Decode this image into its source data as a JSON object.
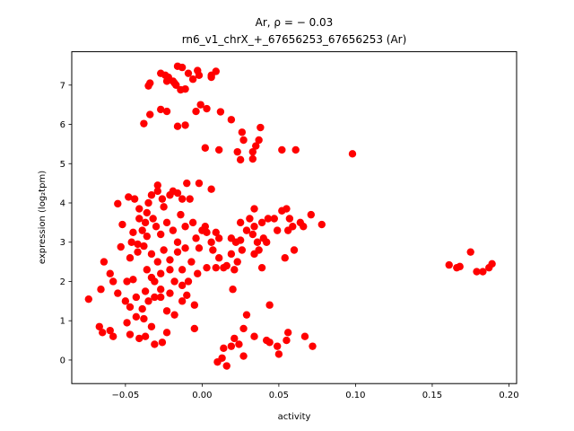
{
  "chart_data": {
    "type": "scatter",
    "title_line1": "Ar, ρ = − 0.03",
    "title_line2": "rn6_v1_chrX_+_67656253_67656253 (Ar)",
    "xlabel": "activity",
    "ylabel": "expression (log₂tpm)",
    "xlim": [
      -0.085,
      0.205
    ],
    "ylim": [
      -0.6,
      7.85
    ],
    "xticks": [
      -0.05,
      0.0,
      0.05,
      0.1,
      0.15,
      0.2
    ],
    "xtick_labels": [
      "−0.05",
      "0.00",
      "0.05",
      "0.10",
      "0.15",
      "0.20"
    ],
    "yticks": [
      0,
      1,
      2,
      3,
      4,
      5,
      6,
      7
    ],
    "ytick_labels": [
      "0",
      "1",
      "2",
      "3",
      "4",
      "5",
      "6",
      "7"
    ],
    "grid": false,
    "marker_color": "#ff0000",
    "points": [
      [
        -0.034,
        7.05
      ],
      [
        -0.035,
        6.98
      ],
      [
        -0.027,
        7.3
      ],
      [
        -0.024,
        7.25
      ],
      [
        -0.022,
        7.2
      ],
      [
        -0.019,
        7.1
      ],
      [
        -0.016,
        7.48
      ],
      [
        -0.013,
        7.45
      ],
      [
        -0.009,
        7.3
      ],
      [
        -0.006,
        7.15
      ],
      [
        -0.003,
        7.37
      ],
      [
        -0.017,
        7.0
      ],
      [
        -0.014,
        6.88
      ],
      [
        -0.011,
        6.9
      ],
      [
        -0.002,
        7.25
      ],
      [
        0.006,
        7.25
      ],
      [
        0.009,
        7.35
      ],
      [
        0.006,
        7.2
      ],
      [
        -0.034,
        6.25
      ],
      [
        -0.038,
        6.02
      ],
      [
        -0.027,
        6.38
      ],
      [
        -0.023,
        6.33
      ],
      [
        -0.016,
        5.95
      ],
      [
        -0.011,
        5.98
      ],
      [
        -0.004,
        6.33
      ],
      [
        -0.001,
        6.5
      ],
      [
        0.003,
        6.4
      ],
      [
        -0.018,
        7.05
      ],
      [
        -0.023,
        7.1
      ],
      [
        0.012,
        6.32
      ],
      [
        0.019,
        6.12
      ],
      [
        0.026,
        5.8
      ],
      [
        0.027,
        5.6
      ],
      [
        0.033,
        5.3
      ],
      [
        0.035,
        5.45
      ],
      [
        0.037,
        5.6
      ],
      [
        0.038,
        5.92
      ],
      [
        0.023,
        5.3
      ],
      [
        0.033,
        5.12
      ],
      [
        0.025,
        5.1
      ],
      [
        0.002,
        5.4
      ],
      [
        0.011,
        5.35
      ],
      [
        0.052,
        5.35
      ],
      [
        0.061,
        5.35
      ],
      [
        0.098,
        5.25
      ],
      [
        -0.055,
        3.98
      ],
      [
        -0.048,
        4.15
      ],
      [
        -0.044,
        4.1
      ],
      [
        -0.041,
        3.85
      ],
      [
        -0.035,
        4.0
      ],
      [
        -0.033,
        4.2
      ],
      [
        -0.029,
        4.3
      ],
      [
        -0.026,
        4.1
      ],
      [
        -0.021,
        4.2
      ],
      [
        -0.019,
        4.3
      ],
      [
        -0.016,
        4.25
      ],
      [
        -0.013,
        4.1
      ],
      [
        -0.01,
        4.5
      ],
      [
        -0.008,
        4.1
      ],
      [
        -0.002,
        4.5
      ],
      [
        0.006,
        4.35
      ],
      [
        -0.029,
        4.45
      ],
      [
        -0.037,
        3.5
      ],
      [
        -0.032,
        3.6
      ],
      [
        -0.027,
        3.2
      ],
      [
        -0.023,
        3.5
      ],
      [
        -0.019,
        3.3
      ],
      [
        -0.014,
        3.7
      ],
      [
        -0.011,
        3.4
      ],
      [
        -0.006,
        3.5
      ],
      [
        0.0,
        3.3
      ],
      [
        0.002,
        3.4
      ],
      [
        0.006,
        3.0
      ],
      [
        0.009,
        3.25
      ],
      [
        -0.039,
        3.3
      ],
      [
        -0.036,
        3.15
      ],
      [
        -0.042,
        2.95
      ],
      [
        -0.046,
        3.0
      ],
      [
        -0.053,
        2.88
      ],
      [
        -0.047,
        2.6
      ],
      [
        -0.042,
        2.75
      ],
      [
        -0.038,
        2.9
      ],
      [
        -0.033,
        2.7
      ],
      [
        -0.029,
        2.5
      ],
      [
        -0.025,
        2.8
      ],
      [
        -0.021,
        2.55
      ],
      [
        -0.016,
        2.75
      ],
      [
        -0.013,
        2.3
      ],
      [
        -0.007,
        2.5
      ],
      [
        -0.003,
        2.2
      ],
      [
        0.003,
        2.35
      ],
      [
        0.009,
        2.35
      ],
      [
        -0.036,
        2.3
      ],
      [
        -0.031,
        2.0
      ],
      [
        -0.027,
        2.2
      ],
      [
        -0.021,
        2.3
      ],
      [
        -0.018,
        2.0
      ],
      [
        -0.013,
        1.9
      ],
      [
        -0.009,
        2.0
      ],
      [
        -0.049,
        2.0
      ],
      [
        -0.045,
        2.05
      ],
      [
        -0.058,
        2.0
      ],
      [
        -0.055,
        1.7
      ],
      [
        -0.05,
        1.5
      ],
      [
        -0.047,
        1.35
      ],
      [
        -0.043,
        1.6
      ],
      [
        -0.039,
        1.3
      ],
      [
        -0.035,
        1.5
      ],
      [
        -0.031,
        1.6
      ],
      [
        -0.027,
        1.8
      ],
      [
        -0.023,
        1.25
      ],
      [
        -0.018,
        1.15
      ],
      [
        -0.013,
        1.5
      ],
      [
        -0.01,
        1.65
      ],
      [
        -0.066,
        1.8
      ],
      [
        -0.074,
        1.55
      ],
      [
        -0.06,
        2.2
      ],
      [
        -0.064,
        2.5
      ],
      [
        -0.067,
        0.85
      ],
      [
        -0.065,
        0.7
      ],
      [
        -0.06,
        0.75
      ],
      [
        -0.058,
        0.6
      ],
      [
        -0.049,
        0.95
      ],
      [
        -0.047,
        0.65
      ],
      [
        -0.041,
        0.55
      ],
      [
        -0.037,
        0.6
      ],
      [
        -0.033,
        0.85
      ],
      [
        -0.031,
        0.4
      ],
      [
        -0.026,
        0.45
      ],
      [
        -0.023,
        0.7
      ],
      [
        -0.043,
        1.1
      ],
      [
        -0.038,
        1.05
      ],
      [
        -0.005,
        1.4
      ],
      [
        -0.005,
        0.8
      ],
      [
        0.019,
        0.35
      ],
      [
        0.021,
        0.55
      ],
      [
        0.024,
        0.4
      ],
      [
        0.027,
        0.8
      ],
      [
        0.029,
        1.15
      ],
      [
        0.027,
        0.1
      ],
      [
        0.014,
        0.3
      ],
      [
        0.013,
        0.05
      ],
      [
        0.016,
        -0.15
      ],
      [
        0.01,
        -0.05
      ],
      [
        0.034,
        0.6
      ],
      [
        0.042,
        0.5
      ],
      [
        0.044,
        0.45
      ],
      [
        0.049,
        0.35
      ],
      [
        0.055,
        0.5
      ],
      [
        0.056,
        0.7
      ],
      [
        0.067,
        0.6
      ],
      [
        0.072,
        0.35
      ],
      [
        0.05,
        0.15
      ],
      [
        0.044,
        1.4
      ],
      [
        0.02,
        1.8
      ],
      [
        0.003,
        3.25
      ],
      [
        0.007,
        2.8
      ],
      [
        0.011,
        3.1
      ],
      [
        0.011,
        2.6
      ],
      [
        0.016,
        2.4
      ],
      [
        0.019,
        2.7
      ],
      [
        0.019,
        3.1
      ],
      [
        0.022,
        3.0
      ],
      [
        0.023,
        2.5
      ],
      [
        0.026,
        2.8
      ],
      [
        0.025,
        3.5
      ],
      [
        0.029,
        3.3
      ],
      [
        0.031,
        3.6
      ],
      [
        0.033,
        3.2
      ],
      [
        0.034,
        3.4
      ],
      [
        0.036,
        3.0
      ],
      [
        0.037,
        2.8
      ],
      [
        0.039,
        3.5
      ],
      [
        0.04,
        3.1
      ],
      [
        0.042,
        3.0
      ],
      [
        0.039,
        2.35
      ],
      [
        0.043,
        3.6
      ],
      [
        0.047,
        3.6
      ],
      [
        0.049,
        3.3
      ],
      [
        0.052,
        3.8
      ],
      [
        0.055,
        3.85
      ],
      [
        0.057,
        3.6
      ],
      [
        0.059,
        3.4
      ],
      [
        0.064,
        3.5
      ],
      [
        0.066,
        3.4
      ],
      [
        0.071,
        3.7
      ],
      [
        0.078,
        3.45
      ],
      [
        0.056,
        3.3
      ],
      [
        0.054,
        2.6
      ],
      [
        0.06,
        2.8
      ],
      [
        0.034,
        3.85
      ],
      [
        0.034,
        2.7
      ],
      [
        0.021,
        2.3
      ],
      [
        0.014,
        2.35
      ],
      [
        0.025,
        3.05
      ],
      [
        -0.045,
        3.25
      ],
      [
        -0.052,
        3.45
      ],
      [
        -0.041,
        3.6
      ],
      [
        -0.036,
        3.75
      ],
      [
        -0.03,
        3.4
      ],
      [
        -0.025,
        3.9
      ],
      [
        -0.016,
        3.0
      ],
      [
        -0.004,
        3.1
      ],
      [
        -0.011,
        2.85
      ],
      [
        -0.002,
        2.85
      ],
      [
        -0.021,
        1.7
      ],
      [
        -0.027,
        1.6
      ],
      [
        -0.037,
        1.75
      ],
      [
        -0.033,
        2.1
      ],
      [
        0.161,
        2.42
      ],
      [
        0.166,
        2.35
      ],
      [
        0.168,
        2.38
      ],
      [
        0.175,
        2.75
      ],
      [
        0.179,
        2.25
      ],
      [
        0.183,
        2.25
      ],
      [
        0.187,
        2.35
      ],
      [
        0.189,
        2.45
      ]
    ]
  }
}
